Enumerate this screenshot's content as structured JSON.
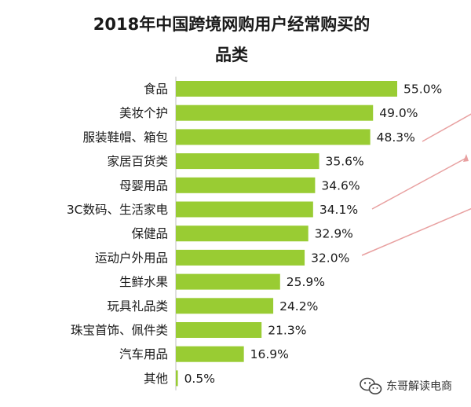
{
  "chart_data": {
    "type": "bar",
    "orientation": "horizontal",
    "title_lines": [
      "2018年中国跨境网购用户经常购买的",
      "品类"
    ],
    "categories": [
      "食品",
      "美妆个护",
      "服装鞋帽、箱包",
      "家居百货类",
      "母婴用品",
      "3C数码、生活家电",
      "保健品",
      "运动户外用品",
      "生鲜水果",
      "玩具礼品类",
      "珠宝首饰、佩件类",
      "汽车用品",
      "其他"
    ],
    "values": [
      55.0,
      49.0,
      48.3,
      35.6,
      34.6,
      34.1,
      32.9,
      32.0,
      25.9,
      24.2,
      21.3,
      16.9,
      0.5
    ],
    "value_labels": [
      "55.0%",
      "49.0%",
      "48.3%",
      "35.6%",
      "34.6%",
      "34.1%",
      "32.9%",
      "32.0%",
      "25.9%",
      "24.2%",
      "21.3%",
      "16.9%",
      "0.5%"
    ],
    "unit": "%",
    "xlim": [
      0,
      55
    ],
    "grid": false,
    "bar_color": "#99cc33",
    "axis_color": "#bfbfbf",
    "callout_color": "#e8a0a0"
  },
  "watermark": {
    "icon": "wechat-icon",
    "text": "东哥解读电商"
  }
}
